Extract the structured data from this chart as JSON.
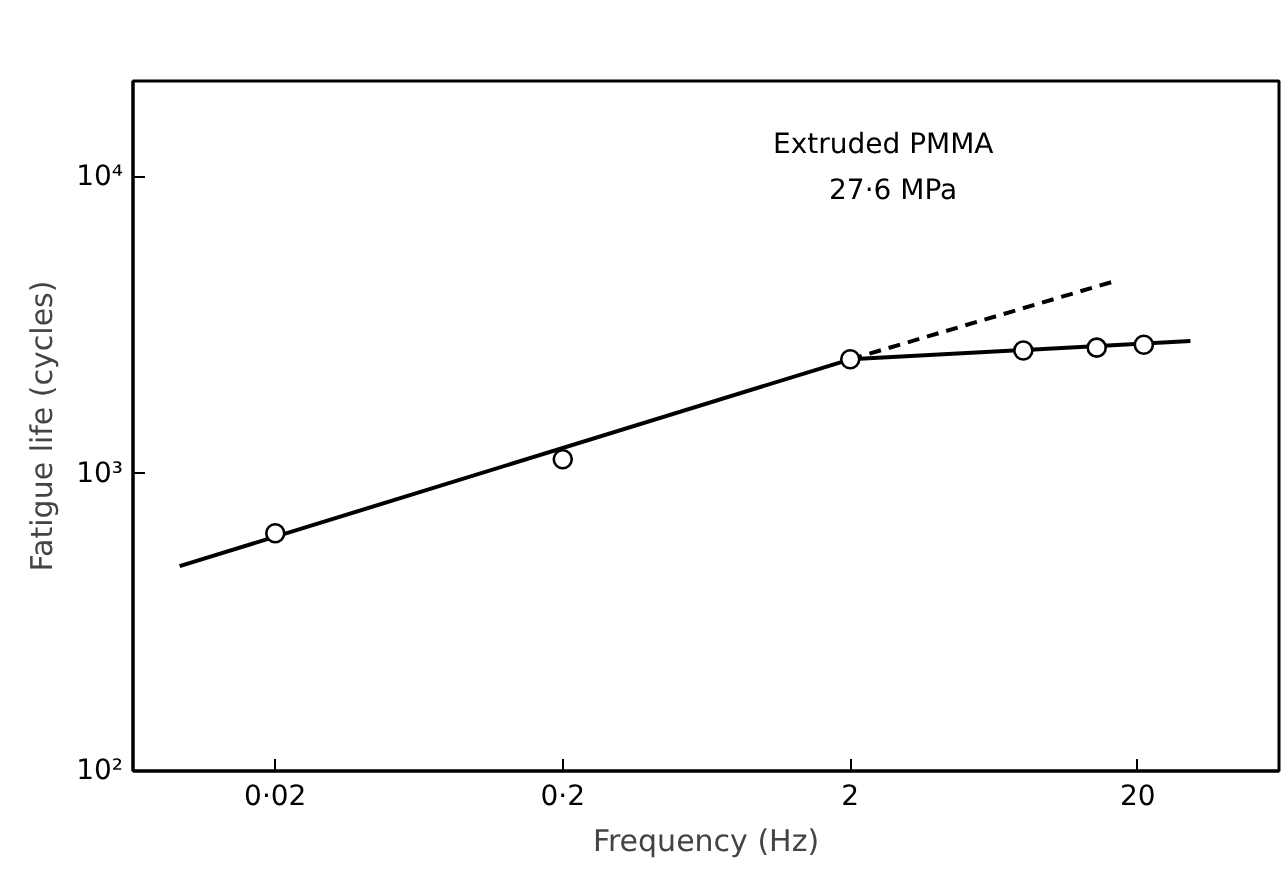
{
  "chart_data": {
    "type": "scatter",
    "xlabel": "Frequency (Hz)",
    "ylabel": "Fatigue life (cycles)",
    "log": "xy",
    "xlim": [
      0.0064,
      62
    ],
    "ylim": [
      100,
      21000
    ],
    "xticks": [
      {
        "value": 0.02,
        "label": "0·02"
      },
      {
        "value": 0.2,
        "label": "0·2"
      },
      2,
      20
    ],
    "yticks": [
      {
        "value": 100,
        "label": "10²"
      },
      {
        "value": 1000,
        "label": "10³"
      },
      {
        "value": 10000,
        "label": "10⁴"
      }
    ],
    "annotations": [
      "Extruded PMMA",
      "27·6 MPa"
    ],
    "grid": false,
    "series": [
      {
        "marker": "circle",
        "color": "#000000",
        "x": [
          0.02,
          0.2,
          2,
          8.0,
          14.4,
          21
        ],
        "values": [
          631,
          1120,
          2430,
          2600,
          2660,
          2720
        ]
      },
      {
        "type": "line",
        "color": "#000000",
        "line_style": "solid",
        "x": [
          0.0093,
          2,
          30.5
        ],
        "values": [
          489,
          2430,
          2800
        ]
      },
      {
        "type": "line",
        "color": "#000000",
        "line_style": "dashed",
        "x": [
          2,
          16.6
        ],
        "values": [
          2430,
          4450
        ]
      }
    ]
  }
}
